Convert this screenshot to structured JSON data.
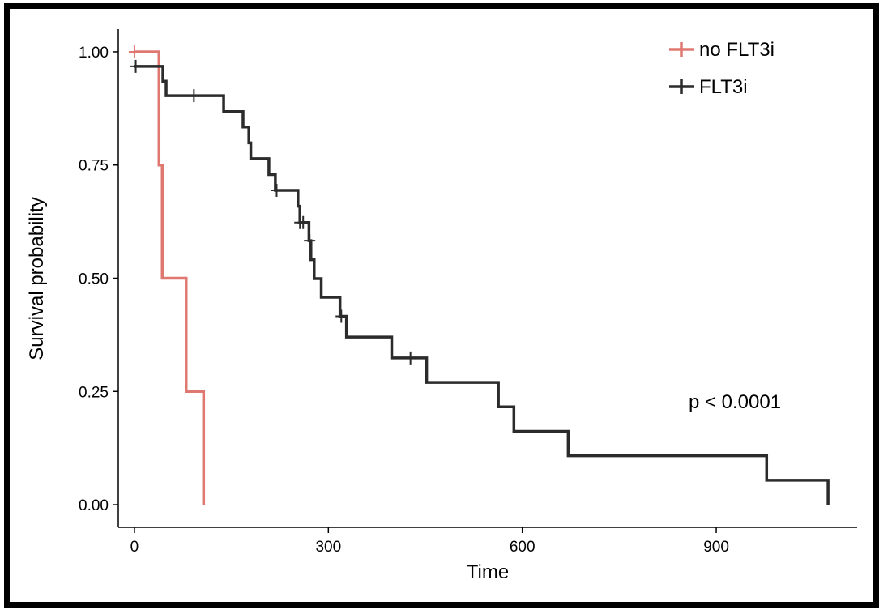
{
  "chart_data": {
    "type": "line",
    "xlabel": "Time",
    "ylabel": "Survival probability",
    "xlim": [
      -25,
      1118
    ],
    "ylim": [
      -0.05,
      1.05
    ],
    "x_ticks": [
      0,
      300,
      600,
      900
    ],
    "y_ticks": [
      0.0,
      0.25,
      0.5,
      0.75,
      1.0
    ],
    "y_tick_labels": [
      "0.00",
      "0.25",
      "0.50",
      "0.75",
      "1.00"
    ],
    "annotation": "p < 0.0001",
    "legend_position": "top-right",
    "grid": false,
    "series": [
      {
        "name": "no FLT3i",
        "color": "#e07872",
        "steps": [
          [
            0,
            1.0
          ],
          [
            38,
            0.75
          ],
          [
            43,
            0.5
          ],
          [
            80,
            0.25
          ],
          [
            107,
            0.0
          ]
        ],
        "censored": [
          [
            0,
            1.0
          ]
        ]
      },
      {
        "name": "FLT3i",
        "color": "#2b2b2b",
        "steps": [
          [
            0,
            0.968
          ],
          [
            44,
            0.935
          ],
          [
            49,
            0.903
          ],
          [
            138,
            0.868
          ],
          [
            168,
            0.834
          ],
          [
            177,
            0.799
          ],
          [
            180,
            0.764
          ],
          [
            208,
            0.729
          ],
          [
            218,
            0.694
          ],
          [
            253,
            0.659
          ],
          [
            256,
            0.623
          ],
          [
            270,
            0.583
          ],
          [
            273,
            0.541
          ],
          [
            278,
            0.499
          ],
          [
            289,
            0.458
          ],
          [
            318,
            0.416
          ],
          [
            328,
            0.37
          ],
          [
            398,
            0.324
          ],
          [
            452,
            0.27
          ],
          [
            563,
            0.216
          ],
          [
            587,
            0.162
          ],
          [
            671,
            0.108
          ],
          [
            978,
            0.054
          ],
          [
            1073,
            0.0
          ]
        ],
        "censored": [
          [
            2,
            0.968
          ],
          [
            92,
            0.903
          ],
          [
            220,
            0.694
          ],
          [
            256,
            0.623
          ],
          [
            261,
            0.623
          ],
          [
            271,
            0.583
          ],
          [
            320,
            0.416
          ],
          [
            427,
            0.324
          ]
        ]
      }
    ]
  }
}
